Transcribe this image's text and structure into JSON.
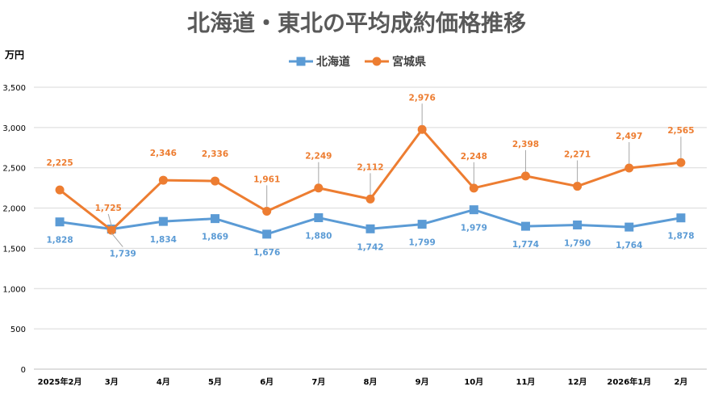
{
  "chart_data": {
    "type": "line",
    "title": "北海道・東北の平均成約価格推移",
    "ylabel": "万円",
    "xlabel": "",
    "ylim": [
      0,
      3500
    ],
    "yticks": [
      0,
      500,
      1000,
      1500,
      2000,
      2500,
      3000,
      3500
    ],
    "ytick_labels": [
      "0",
      "500",
      "1,000",
      "1,500",
      "2,000",
      "2,500",
      "3,000",
      "3,500"
    ],
    "categories": [
      "2025年2月",
      "3月",
      "4月",
      "5月",
      "6月",
      "7月",
      "8月",
      "9月",
      "10月",
      "11月",
      "12月",
      "2026年1月",
      "2月"
    ],
    "legend_position": "top-center",
    "grid": true,
    "series": [
      {
        "name": "北海道",
        "color": "#5b9bd5",
        "marker": "square",
        "values": [
          1828,
          1739,
          1834,
          1869,
          1676,
          1880,
          1742,
          1799,
          1979,
          1774,
          1790,
          1764,
          1878
        ],
        "labels": [
          "1,828",
          "1,739",
          "1,834",
          "1,869",
          "1,676",
          "1,880",
          "1,742",
          "1,799",
          "1,979",
          "1,774",
          "1,790",
          "1,764",
          "1,878"
        ]
      },
      {
        "name": "宮城県",
        "color": "#ed7d31",
        "marker": "circle",
        "values": [
          2225,
          1725,
          2346,
          2336,
          1961,
          2249,
          2112,
          2976,
          2248,
          2398,
          2271,
          2497,
          2565
        ],
        "labels": [
          "2,225",
          "1,725",
          "2,346",
          "2,336",
          "1,961",
          "2,249",
          "2,112",
          "2,976",
          "2,248",
          "2,398",
          "2,271",
          "2,497",
          "2,565"
        ]
      }
    ]
  }
}
